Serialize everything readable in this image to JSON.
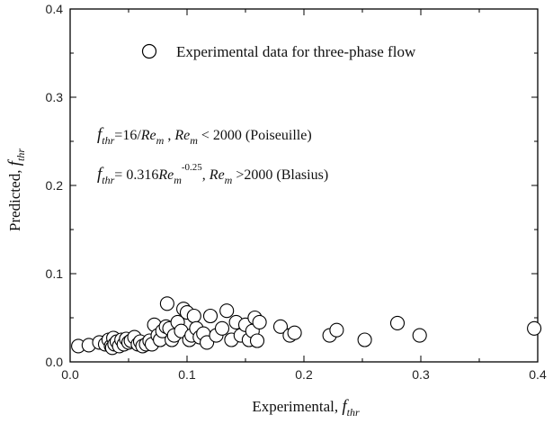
{
  "chart_data": {
    "type": "scatter",
    "xlabel": {
      "main": "Experimental, ",
      "var": "f",
      "sub": "thr"
    },
    "ylabel": {
      "main": "Predicted, ",
      "var": "f",
      "sub": "thr"
    },
    "xlim": [
      0.0,
      0.4
    ],
    "ylim": [
      0.0,
      0.4
    ],
    "x_ticks": [
      "0.0",
      "0.1",
      "0.2",
      "0.3",
      "0.4"
    ],
    "y_ticks": [
      "0.0",
      "0.1",
      "0.2",
      "0.3",
      "0.4"
    ],
    "grid": false,
    "legend": {
      "position": "top-center",
      "entries": [
        "Experimental data for three-phase flow"
      ]
    },
    "annotations": {
      "formula1": {
        "f": "f",
        "thr": "thr",
        "eq": "=16/",
        "Re": "Re",
        "m": "m",
        "comma": " , ",
        "Re2": "Re",
        "m2": "m",
        "rest": " < 2000 (Poiseuille)"
      },
      "formula2": {
        "f": "f",
        "thr": "thr",
        "eq": "= 0.316",
        "Re": "Re",
        "m": "m",
        "exp": "-0.25",
        "comma": ", ",
        "Re2": "Re",
        "m2": "m",
        "rest": " >2000 (Blasius)"
      }
    },
    "series": [
      {
        "marker": "open-circle",
        "points": [
          [
            0.007,
            0.018
          ],
          [
            0.016,
            0.019
          ],
          [
            0.025,
            0.022
          ],
          [
            0.03,
            0.02
          ],
          [
            0.033,
            0.025
          ],
          [
            0.035,
            0.018
          ],
          [
            0.036,
            0.016
          ],
          [
            0.037,
            0.027
          ],
          [
            0.038,
            0.02
          ],
          [
            0.04,
            0.023
          ],
          [
            0.042,
            0.018
          ],
          [
            0.044,
            0.025
          ],
          [
            0.046,
            0.02
          ],
          [
            0.048,
            0.026
          ],
          [
            0.05,
            0.022
          ],
          [
            0.052,
            0.024
          ],
          [
            0.055,
            0.028
          ],
          [
            0.058,
            0.02
          ],
          [
            0.06,
            0.023
          ],
          [
            0.062,
            0.018
          ],
          [
            0.065,
            0.02
          ],
          [
            0.068,
            0.024
          ],
          [
            0.07,
            0.02
          ],
          [
            0.072,
            0.042
          ],
          [
            0.075,
            0.03
          ],
          [
            0.077,
            0.025
          ],
          [
            0.079,
            0.035
          ],
          [
            0.082,
            0.04
          ],
          [
            0.083,
            0.066
          ],
          [
            0.085,
            0.038
          ],
          [
            0.087,
            0.025
          ],
          [
            0.089,
            0.03
          ],
          [
            0.092,
            0.045
          ],
          [
            0.095,
            0.035
          ],
          [
            0.097,
            0.06
          ],
          [
            0.1,
            0.056
          ],
          [
            0.102,
            0.025
          ],
          [
            0.104,
            0.03
          ],
          [
            0.106,
            0.052
          ],
          [
            0.108,
            0.038
          ],
          [
            0.111,
            0.028
          ],
          [
            0.114,
            0.032
          ],
          [
            0.117,
            0.022
          ],
          [
            0.12,
            0.052
          ],
          [
            0.125,
            0.03
          ],
          [
            0.13,
            0.038
          ],
          [
            0.134,
            0.058
          ],
          [
            0.138,
            0.025
          ],
          [
            0.142,
            0.045
          ],
          [
            0.146,
            0.03
          ],
          [
            0.15,
            0.042
          ],
          [
            0.153,
            0.025
          ],
          [
            0.156,
            0.035
          ],
          [
            0.158,
            0.05
          ],
          [
            0.16,
            0.024
          ],
          [
            0.162,
            0.045
          ],
          [
            0.18,
            0.04
          ],
          [
            0.188,
            0.03
          ],
          [
            0.192,
            0.033
          ],
          [
            0.222,
            0.03
          ],
          [
            0.228,
            0.036
          ],
          [
            0.252,
            0.025
          ],
          [
            0.28,
            0.044
          ],
          [
            0.299,
            0.03
          ],
          [
            0.397,
            0.038
          ]
        ]
      }
    ]
  }
}
